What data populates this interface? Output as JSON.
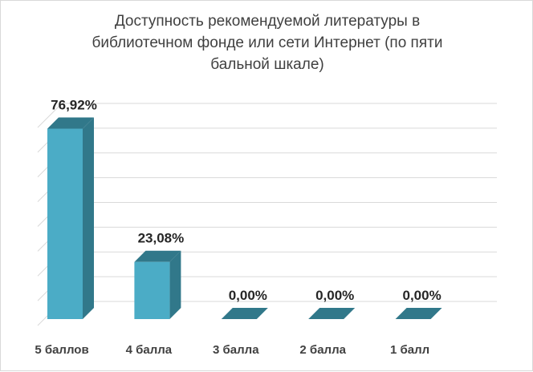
{
  "chart_data": {
    "type": "bar",
    "style": "3d-column",
    "title_lines": [
      "Доступность рекомендуемой литературы в",
      "библиотечном фонде или сети Интернет (по пяти",
      "бальной шкале)"
    ],
    "categories": [
      "5 баллов",
      "4 балла",
      "3  балла",
      "2 балла",
      "1 балл"
    ],
    "values": [
      76.92,
      23.08,
      0.0,
      0.0,
      0.0
    ],
    "data_labels": [
      "76,92%",
      "23,08%",
      "0,00%",
      "0,00%",
      "0,00%"
    ],
    "unit": "%",
    "ylim": [
      0,
      80
    ],
    "grid": true,
    "legend": "none",
    "colors": {
      "bar_front": "#4bacc6",
      "bar_side": "#31788a",
      "bar_top": "#31788a",
      "grid": "#d9d9d9",
      "text": "#404040"
    }
  }
}
